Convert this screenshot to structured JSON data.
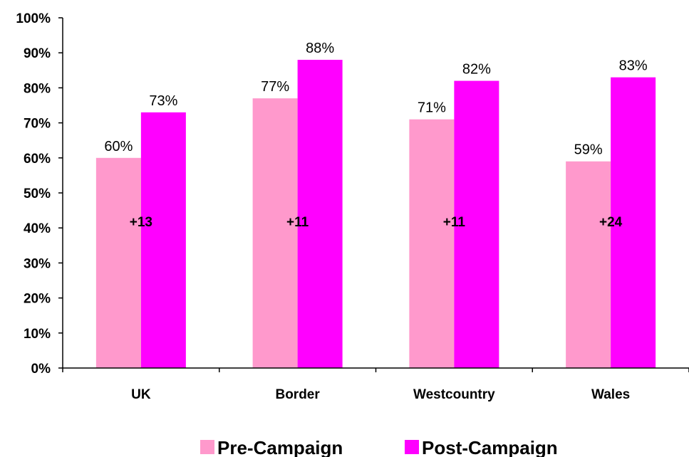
{
  "chart_data": {
    "type": "bar",
    "categories": [
      "UK",
      "Border",
      "Westcountry",
      "Wales"
    ],
    "series": [
      {
        "name": "Pre-Campaign",
        "values": [
          60,
          77,
          71,
          59
        ],
        "labels": [
          "60%",
          "77%",
          "71%",
          "59%"
        ],
        "color": "#ff99cc"
      },
      {
        "name": "Post-Campaign",
        "values": [
          73,
          88,
          82,
          83
        ],
        "labels": [
          "73%",
          "88%",
          "82%",
          "83%"
        ],
        "color": "#ff00ff"
      }
    ],
    "differences": [
      "+13",
      "+11",
      "+11",
      "+24"
    ],
    "ylim": [
      0,
      100
    ],
    "yticks": [
      "0%",
      "10%",
      "20%",
      "30%",
      "40%",
      "50%",
      "60%",
      "70%",
      "80%",
      "90%",
      "100%"
    ],
    "grid": false,
    "legend_position": "bottom"
  }
}
